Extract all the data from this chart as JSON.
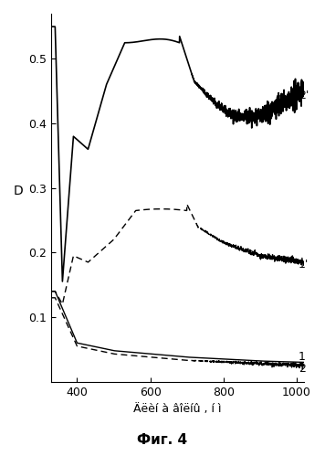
{
  "title": "",
  "xlabel": "Äëèí à âîëíû , í ì",
  "ylabel": "D",
  "fig_caption": "Фиг. 4",
  "xlim": [
    330,
    1020
  ],
  "ylim": [
    0,
    0.57
  ],
  "xticks": [
    400,
    600,
    800,
    1000
  ],
  "yticks": [
    0.1,
    0.2,
    0.3,
    0.4,
    0.5
  ],
  "background_color": "#ffffff",
  "line_color": "#000000"
}
